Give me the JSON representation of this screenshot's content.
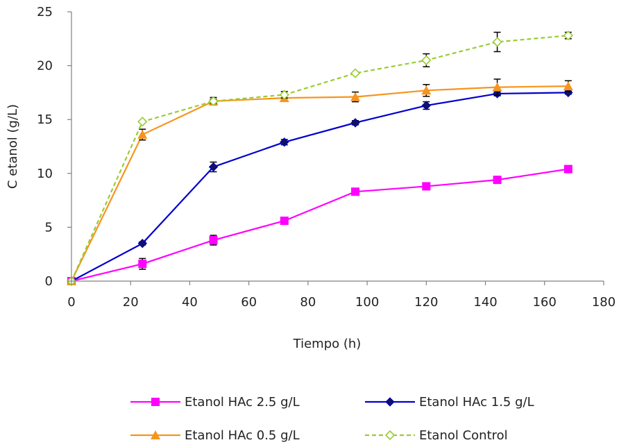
{
  "chart_data": {
    "type": "line",
    "title": "",
    "xlabel": "Tiempo (h)",
    "ylabel": "C etanol (g/L)",
    "xlim": [
      0,
      180
    ],
    "ylim": [
      0,
      25
    ],
    "xticks": [
      0,
      20,
      40,
      60,
      80,
      100,
      120,
      140,
      160,
      180
    ],
    "yticks": [
      0,
      5,
      10,
      15,
      20,
      25
    ],
    "grid": false,
    "legend_position": "bottom",
    "x": [
      0,
      24,
      48,
      72,
      96,
      120,
      144,
      168
    ],
    "series": [
      {
        "name": "Etanol HAc 2.5 g/L",
        "color": "#FF00FF",
        "marker": "square",
        "dashed": false,
        "values": [
          0,
          1.6,
          3.8,
          5.6,
          8.3,
          8.8,
          9.4,
          10.4
        ],
        "errors": [
          0,
          0.5,
          0.45,
          0,
          0,
          0,
          0,
          0
        ]
      },
      {
        "name": "Etanol HAc 1.5 g/L",
        "color": "#0000CC",
        "marker": "diamond",
        "dashed": false,
        "values": [
          0,
          3.5,
          10.6,
          12.9,
          14.7,
          16.3,
          17.4,
          17.5
        ],
        "errors": [
          0,
          0.15,
          0.45,
          0.25,
          0.2,
          0.35,
          0.2,
          0.15
        ]
      },
      {
        "name": "Etanol HAc 0.5 g/L",
        "color": "#F7941D",
        "marker": "triangle",
        "dashed": false,
        "values": [
          0,
          13.6,
          16.7,
          17.0,
          17.1,
          17.7,
          18.0,
          18.1
        ],
        "errors": [
          0,
          0.5,
          0.35,
          0.25,
          0.45,
          0.55,
          0.75,
          0.5
        ]
      },
      {
        "name": "Etanol Control",
        "color": "#99CC33",
        "marker": "diamond-open",
        "dashed": true,
        "values": [
          0,
          14.8,
          16.7,
          17.3,
          19.3,
          20.5,
          22.2,
          22.8
        ],
        "errors": [
          0,
          0,
          0.2,
          0.3,
          0,
          0.6,
          0.9,
          0.3
        ]
      }
    ]
  }
}
